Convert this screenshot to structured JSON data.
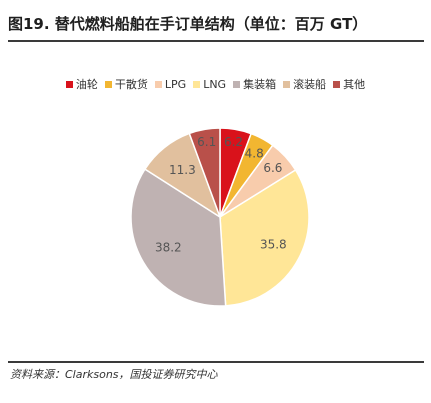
{
  "figure": {
    "title": "图19. 替代燃料船舶在手订单结构（单位：百万 GT）",
    "source": "资料来源：Clarksons，国投证券研究中心"
  },
  "chart_data": {
    "type": "pie",
    "title": "",
    "legend_position": "top",
    "slices": [
      {
        "label": "油轮",
        "value": 6.2,
        "color": "#d9121b"
      },
      {
        "label": "干散货",
        "value": 4.8,
        "color": "#f2b631"
      },
      {
        "label": "LPG",
        "value": 6.6,
        "color": "#f8ccac"
      },
      {
        "label": "LNG",
        "value": 35.8,
        "color": "#ffe697"
      },
      {
        "label": "集装箱",
        "value": 38.2,
        "color": "#bfb2b2"
      },
      {
        "label": "滚装船",
        "value": 11.3,
        "color": "#e1c09e"
      },
      {
        "label": "其他",
        "value": 6.1,
        "color": "#b9504a"
      }
    ]
  }
}
